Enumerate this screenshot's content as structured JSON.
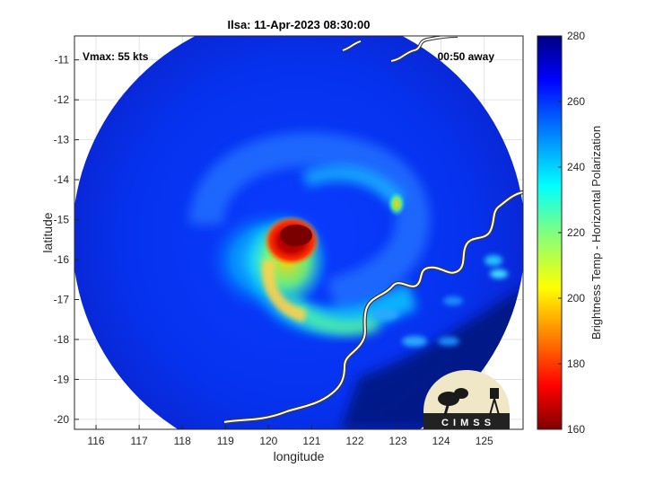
{
  "chart_data": {
    "type": "heatmap",
    "title": "Ilsa: 11-Apr-2023 08:30:00",
    "xlabel": "longitude",
    "ylabel": "latitude",
    "xlim": [
      115.5,
      125.9
    ],
    "ylim": [
      -20.25,
      -10.4
    ],
    "x_ticks": [
      116,
      117,
      118,
      119,
      120,
      121,
      122,
      123,
      124,
      125
    ],
    "y_ticks": [
      -11,
      -12,
      -13,
      -14,
      -15,
      -16,
      -17,
      -18,
      -19,
      -20
    ],
    "grid": true,
    "colorbar": {
      "label": "Brightness Temp - Horizontal Polarization",
      "range": [
        160,
        280
      ],
      "ticks": [
        280,
        260,
        240,
        220,
        200,
        180,
        160
      ],
      "colormap": "jet"
    },
    "swath": {
      "center_lon": 120.7,
      "center_lat": -15.45,
      "radius_deg": 5.25
    },
    "features": [
      {
        "kind": "eyewall-core",
        "lon": 120.65,
        "lat": -15.2,
        "value": 162
      },
      {
        "kind": "inner-band",
        "lon": 120.2,
        "lat": -16.2,
        "value": 195
      },
      {
        "kind": "spiral-band",
        "lon": 120.9,
        "lat": -17.3,
        "value": 218
      },
      {
        "kind": "outer-band",
        "lon": 122.9,
        "lat": -14.5,
        "value": 212
      },
      {
        "kind": "rainband-south",
        "lon": 122.4,
        "lat": -17.8,
        "value": 240
      }
    ],
    "annotations": {
      "vmax": "Vmax: 55 kts",
      "away": "00:50 away"
    },
    "logo_text": "C I M S S"
  }
}
